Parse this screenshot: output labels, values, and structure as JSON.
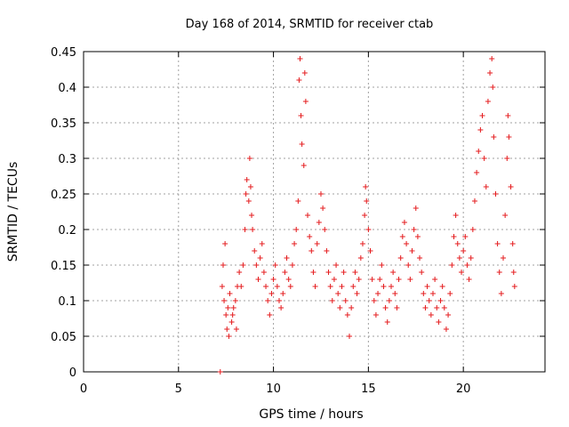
{
  "chart_data": {
    "type": "scatter",
    "title": "Day 168 of 2014, SRMTID for receiver ctab",
    "xlabel": "GPS time / hours",
    "ylabel": "SRMTID / TECUs",
    "xlim": [
      0,
      24.3
    ],
    "ylim": [
      0,
      0.45
    ],
    "xticks": [
      0,
      5,
      10,
      15,
      20
    ],
    "xtick_labels": [
      "0",
      "5",
      "10",
      "15",
      "20"
    ],
    "yticks": [
      0,
      0.05,
      0.1,
      0.15,
      0.2,
      0.25,
      0.3,
      0.35,
      0.4,
      0.45
    ],
    "ytick_labels": [
      "0",
      "0.05",
      "0.1",
      "0.15",
      "0.2",
      "0.25",
      "0.3",
      "0.35",
      "0.4",
      "0.45"
    ],
    "grid": true,
    "marker": "+",
    "color": "#e41a1c",
    "series": [
      {
        "name": "SRMTID",
        "points": [
          [
            7.2,
            0.0
          ],
          [
            7.3,
            0.12
          ],
          [
            7.4,
            0.1
          ],
          [
            7.5,
            0.08
          ],
          [
            7.6,
            0.09
          ],
          [
            7.7,
            0.11
          ],
          [
            7.8,
            0.07
          ],
          [
            7.9,
            0.09
          ],
          [
            8.0,
            0.1
          ],
          [
            8.1,
            0.12
          ],
          [
            7.35,
            0.15
          ],
          [
            7.45,
            0.18
          ],
          [
            7.55,
            0.06
          ],
          [
            7.65,
            0.05
          ],
          [
            7.85,
            0.08
          ],
          [
            8.05,
            0.06
          ],
          [
            8.2,
            0.14
          ],
          [
            8.3,
            0.12
          ],
          [
            8.4,
            0.15
          ],
          [
            8.5,
            0.2
          ],
          [
            8.55,
            0.25
          ],
          [
            8.6,
            0.27
          ],
          [
            8.7,
            0.24
          ],
          [
            8.75,
            0.3
          ],
          [
            8.8,
            0.26
          ],
          [
            8.85,
            0.22
          ],
          [
            8.9,
            0.2
          ],
          [
            9.0,
            0.17
          ],
          [
            9.1,
            0.15
          ],
          [
            9.2,
            0.13
          ],
          [
            9.3,
            0.16
          ],
          [
            9.4,
            0.18
          ],
          [
            9.5,
            0.14
          ],
          [
            9.6,
            0.12
          ],
          [
            9.7,
            0.1
          ],
          [
            9.8,
            0.08
          ],
          [
            9.9,
            0.11
          ],
          [
            10.0,
            0.13
          ],
          [
            10.1,
            0.15
          ],
          [
            10.2,
            0.12
          ],
          [
            10.3,
            0.1
          ],
          [
            10.4,
            0.09
          ],
          [
            10.5,
            0.11
          ],
          [
            10.6,
            0.14
          ],
          [
            10.7,
            0.16
          ],
          [
            10.8,
            0.13
          ],
          [
            10.9,
            0.12
          ],
          [
            11.0,
            0.15
          ],
          [
            11.1,
            0.18
          ],
          [
            11.2,
            0.2
          ],
          [
            11.3,
            0.24
          ],
          [
            11.35,
            0.41
          ],
          [
            11.4,
            0.44
          ],
          [
            11.45,
            0.36
          ],
          [
            11.5,
            0.32
          ],
          [
            11.6,
            0.29
          ],
          [
            11.65,
            0.42
          ],
          [
            11.7,
            0.38
          ],
          [
            11.8,
            0.22
          ],
          [
            11.9,
            0.19
          ],
          [
            12.0,
            0.17
          ],
          [
            12.1,
            0.14
          ],
          [
            12.2,
            0.12
          ],
          [
            12.3,
            0.18
          ],
          [
            12.4,
            0.21
          ],
          [
            12.5,
            0.25
          ],
          [
            12.6,
            0.23
          ],
          [
            12.7,
            0.2
          ],
          [
            12.8,
            0.17
          ],
          [
            12.9,
            0.14
          ],
          [
            13.0,
            0.12
          ],
          [
            13.1,
            0.1
          ],
          [
            13.2,
            0.13
          ],
          [
            13.3,
            0.15
          ],
          [
            13.4,
            0.11
          ],
          [
            13.5,
            0.09
          ],
          [
            13.6,
            0.12
          ],
          [
            13.7,
            0.14
          ],
          [
            13.8,
            0.1
          ],
          [
            13.9,
            0.08
          ],
          [
            14.0,
            0.05
          ],
          [
            14.1,
            0.09
          ],
          [
            14.2,
            0.12
          ],
          [
            14.3,
            0.14
          ],
          [
            14.4,
            0.11
          ],
          [
            14.5,
            0.13
          ],
          [
            14.6,
            0.16
          ],
          [
            14.7,
            0.18
          ],
          [
            14.8,
            0.22
          ],
          [
            14.85,
            0.26
          ],
          [
            14.9,
            0.24
          ],
          [
            15.0,
            0.2
          ],
          [
            15.1,
            0.17
          ],
          [
            15.2,
            0.13
          ],
          [
            15.3,
            0.1
          ],
          [
            15.4,
            0.08
          ],
          [
            15.5,
            0.11
          ],
          [
            15.6,
            0.13
          ],
          [
            15.7,
            0.15
          ],
          [
            15.8,
            0.12
          ],
          [
            15.9,
            0.09
          ],
          [
            16.0,
            0.07
          ],
          [
            16.1,
            0.1
          ],
          [
            16.2,
            0.12
          ],
          [
            16.3,
            0.14
          ],
          [
            16.4,
            0.11
          ],
          [
            16.5,
            0.09
          ],
          [
            16.6,
            0.13
          ],
          [
            16.7,
            0.16
          ],
          [
            16.8,
            0.19
          ],
          [
            16.9,
            0.21
          ],
          [
            17.0,
            0.18
          ],
          [
            17.1,
            0.15
          ],
          [
            17.2,
            0.13
          ],
          [
            17.3,
            0.17
          ],
          [
            17.4,
            0.2
          ],
          [
            17.5,
            0.23
          ],
          [
            17.6,
            0.19
          ],
          [
            17.7,
            0.16
          ],
          [
            17.8,
            0.14
          ],
          [
            17.9,
            0.11
          ],
          [
            18.0,
            0.09
          ],
          [
            18.1,
            0.12
          ],
          [
            18.2,
            0.1
          ],
          [
            18.3,
            0.08
          ],
          [
            18.4,
            0.11
          ],
          [
            18.5,
            0.13
          ],
          [
            18.6,
            0.09
          ],
          [
            18.7,
            0.07
          ],
          [
            18.8,
            0.1
          ],
          [
            18.9,
            0.12
          ],
          [
            19.0,
            0.09
          ],
          [
            19.1,
            0.06
          ],
          [
            19.2,
            0.08
          ],
          [
            19.3,
            0.11
          ],
          [
            19.4,
            0.15
          ],
          [
            19.5,
            0.19
          ],
          [
            19.6,
            0.22
          ],
          [
            19.7,
            0.18
          ],
          [
            19.8,
            0.16
          ],
          [
            19.9,
            0.14
          ],
          [
            20.0,
            0.17
          ],
          [
            20.1,
            0.19
          ],
          [
            20.2,
            0.15
          ],
          [
            20.3,
            0.13
          ],
          [
            20.4,
            0.16
          ],
          [
            20.5,
            0.2
          ],
          [
            20.6,
            0.24
          ],
          [
            20.7,
            0.28
          ],
          [
            20.8,
            0.31
          ],
          [
            20.9,
            0.34
          ],
          [
            21.0,
            0.36
          ],
          [
            21.1,
            0.3
          ],
          [
            21.2,
            0.26
          ],
          [
            21.3,
            0.38
          ],
          [
            21.4,
            0.42
          ],
          [
            21.5,
            0.44
          ],
          [
            21.55,
            0.4
          ],
          [
            21.6,
            0.33
          ],
          [
            21.7,
            0.25
          ],
          [
            21.8,
            0.18
          ],
          [
            21.9,
            0.14
          ],
          [
            22.0,
            0.11
          ],
          [
            22.1,
            0.16
          ],
          [
            22.2,
            0.22
          ],
          [
            22.3,
            0.3
          ],
          [
            22.35,
            0.36
          ],
          [
            22.4,
            0.33
          ],
          [
            22.5,
            0.26
          ],
          [
            22.6,
            0.18
          ],
          [
            22.65,
            0.14
          ],
          [
            22.7,
            0.12
          ]
        ]
      }
    ]
  }
}
